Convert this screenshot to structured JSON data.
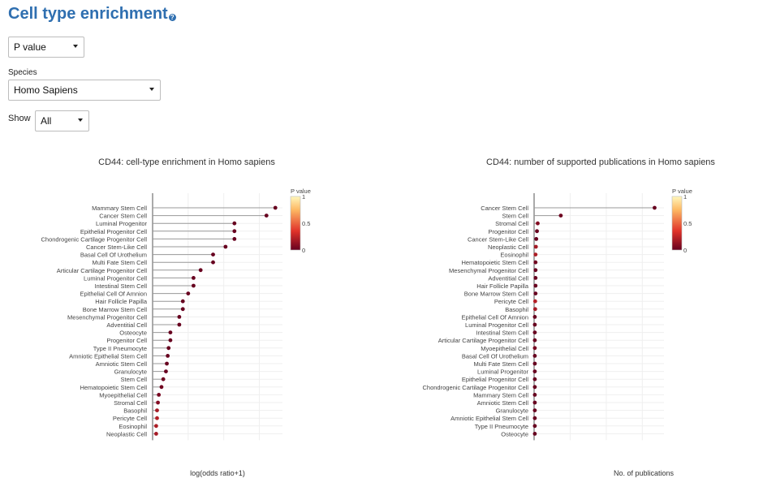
{
  "page": {
    "title": "Cell type enrichment",
    "help_icon": "?"
  },
  "controls": {
    "metric": {
      "selected": "P value"
    },
    "species": {
      "label": "Species",
      "selected": "Homo Sapiens"
    },
    "show": {
      "label": "Show",
      "selected": "All"
    }
  },
  "colors": {
    "low": "#67001f",
    "mid": "#e0322a",
    "high_mid": "#fdb863",
    "high": "#fff7bc",
    "grid": "#efefef",
    "stem": "#9a9a9a"
  },
  "chart_data": [
    {
      "type": "scatter",
      "style": "lollipop",
      "title": "CD44: cell-type enrichment in Homo sapiens",
      "xlabel": "log(odds ratio+1)",
      "xlim": [
        0,
        73
      ],
      "xticks": [
        0,
        20,
        40,
        60
      ],
      "colorbar": {
        "title": "P value",
        "ticks": [
          "1",
          "0.5",
          "0"
        ],
        "range": [
          0,
          1
        ]
      },
      "categories": [
        "Mammary Stem Cell",
        "Cancer Stem Cell",
        "Luminal Progenitor",
        "Epithelial Progenitor Cell",
        "Chondrogenic Cartilage Progenitor Cell",
        "Cancer Stem-Like Cell",
        "Basal Cell Of Urothelium",
        "Multi Fate Stem Cell",
        "Articular Cartilage Progenitor Cell",
        "Luminal Progenitor Cell",
        "Intestinal Stem Cell",
        "Epithelial Cell Of Amnion",
        "Hair Follicle Papilla",
        "Bone Marrow Stem Cell",
        "Mesenchymal Progenitor Cell",
        "Adventitial Cell",
        "Osteocyte",
        "Progenitor Cell",
        "Type II Pneumocyte",
        "Amniotic Epithelial Stem Cell",
        "Amniotic Stem Cell",
        "Granulocyte",
        "Stem Cell",
        "Hematopoietic Stem Cell",
        "Myoepithelial Cell",
        "Stromal Cell",
        "Basophil",
        "Pericyte Cell",
        "Eosinophil",
        "Neoplastic Cell"
      ],
      "values": [
        69,
        64,
        46,
        46,
        46,
        41,
        34,
        34,
        27,
        23,
        23,
        20,
        17,
        17,
        15,
        15,
        10,
        10,
        9,
        8.5,
        8,
        7.5,
        6,
        5,
        3.5,
        3,
        2.5,
        2.5,
        2,
        2
      ],
      "pvalues": [
        0,
        0,
        0,
        0,
        0,
        0,
        0,
        0,
        0,
        0,
        0,
        0,
        0,
        0,
        0,
        0,
        0,
        0,
        0,
        0,
        0,
        0,
        0.02,
        0.03,
        0.05,
        0.08,
        0.18,
        0.22,
        0.2,
        0.18
      ]
    },
    {
      "type": "scatter",
      "style": "lollipop",
      "title": "CD44: number of supported publications in Homo sapiens",
      "xlabel": "No. of publications",
      "xlim": [
        0,
        180
      ],
      "xticks": [
        0,
        50,
        100,
        150
      ],
      "colorbar": {
        "title": "P value",
        "ticks": [
          "1",
          "0.5",
          "0"
        ],
        "range": [
          0,
          1
        ]
      },
      "categories": [
        "Cancer Stem Cell",
        "Stem Cell",
        "Stromal Cell",
        "Progenitor Cell",
        "Cancer Stem-Like Cell",
        "Neoplastic Cell",
        "Eosinophil",
        "Hematopoietic Stem Cell",
        "Mesenchymal Progenitor Cell",
        "Adventitial Cell",
        "Hair Follicle Papilla",
        "Bone Marrow Stem Cell",
        "Pericyte Cell",
        "Basophil",
        "Epithelial Cell Of Amnion",
        "Luminal Progenitor Cell",
        "Intestinal Stem Cell",
        "Articular Cartilage Progenitor Cell",
        "Myoepithelial Cell",
        "Basal Cell Of Urothelium",
        "Multi Fate Stem Cell",
        "Luminal Progenitor",
        "Epithelial Progenitor Cell",
        "Chondrogenic Cartilage Progenitor Cell",
        "Mammary Stem Cell",
        "Amniotic Stem Cell",
        "Granulocyte",
        "Amniotic Epithelial Stem Cell",
        "Type II Pneumocyte",
        "Osteocyte"
      ],
      "values": [
        167,
        37,
        5,
        4,
        3,
        2.5,
        2,
        2,
        2,
        2,
        2,
        2,
        1.5,
        1.5,
        1,
        1,
        1,
        1,
        1,
        1,
        1,
        1,
        1,
        1,
        1,
        1,
        1,
        1,
        1,
        1
      ],
      "pvalues": [
        0,
        0.02,
        0.08,
        0,
        0,
        0.18,
        0.2,
        0.03,
        0,
        0,
        0,
        0,
        0.22,
        0.18,
        0,
        0,
        0,
        0,
        0.05,
        0,
        0,
        0,
        0,
        0,
        0,
        0,
        0,
        0,
        0,
        0
      ]
    }
  ]
}
